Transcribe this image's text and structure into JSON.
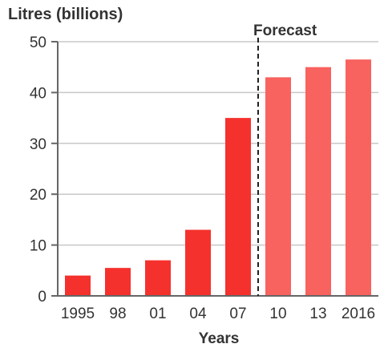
{
  "chart_data": {
    "type": "bar",
    "ylabel": "Litres (billions)",
    "xlabel": "Years",
    "categories": [
      "1995",
      "98",
      "01",
      "04",
      "07",
      "10",
      "13",
      "2016"
    ],
    "values": [
      4,
      5.5,
      7,
      13,
      35,
      43,
      45,
      46.5
    ],
    "forecast_from_index": 5,
    "forecast_label": "Forecast",
    "ylim": [
      0,
      50
    ],
    "yticks": [
      "0",
      "10",
      "20",
      "30",
      "40",
      "50"
    ],
    "grid": true,
    "colors": {
      "actual": "#f5312d",
      "forecast": "#f8625f",
      "grid": "#c8c8c8",
      "axis": "#666666",
      "divider": "#222222"
    }
  }
}
